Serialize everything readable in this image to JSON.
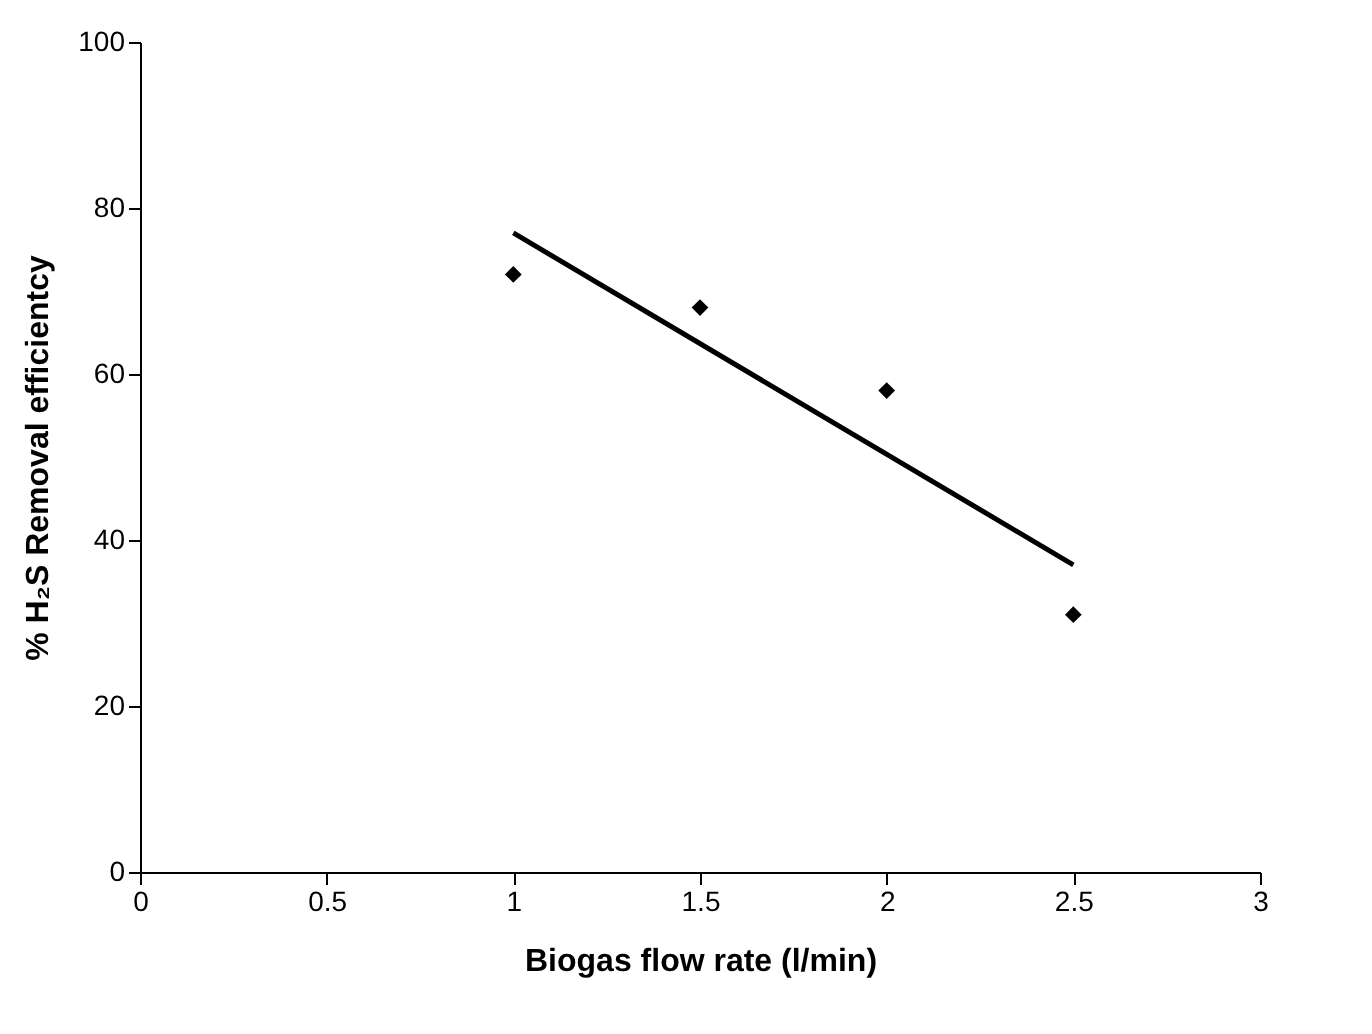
{
  "chart_data": {
    "type": "scatter",
    "xlabel": "Biogas flow rate (l/min)",
    "ylabel": "% H₂S Removal efficientcy",
    "xlim": [
      0,
      3
    ],
    "xticks": [
      0,
      0.5,
      1,
      1.5,
      2,
      2.5,
      3
    ],
    "ylim": [
      0,
      100
    ],
    "yticks": [
      0,
      20,
      40,
      60,
      80,
      100
    ],
    "grid": false,
    "series": [
      {
        "color": "#000000",
        "marker": "diamond",
        "x": [
          1,
          1.5,
          2,
          2.5
        ],
        "values": [
          72,
          68,
          58,
          31
        ]
      },
      {
        "type": "line",
        "color": "#000000",
        "x": [
          1,
          2.5
        ],
        "values": [
          77,
          37
        ]
      }
    ]
  }
}
